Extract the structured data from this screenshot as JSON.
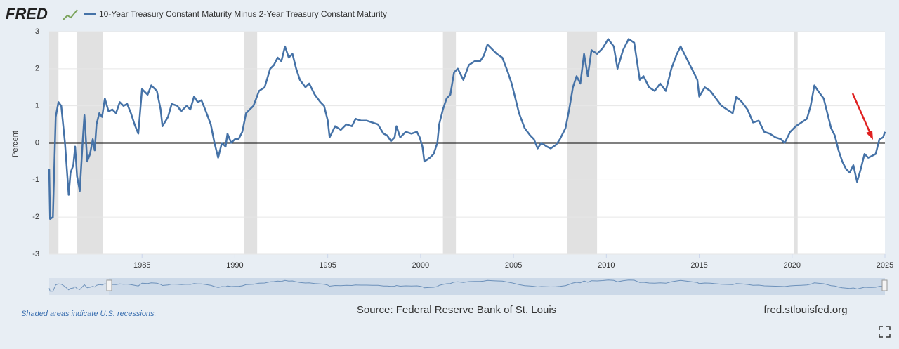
{
  "chart_data": {
    "type": "line",
    "logo": "FRED",
    "ylabel": "Percent",
    "note": "Shaded areas indicate U.S. recessions.",
    "source": "Source: Federal Reserve Bank of St. Louis",
    "site": "fred.stlouisfed.org",
    "xlim": [
      1980,
      2025
    ],
    "ylim": [
      -3,
      3
    ],
    "xticks": [
      1985,
      1990,
      1995,
      2000,
      2005,
      2010,
      2015,
      2020,
      2025
    ],
    "yticks": [
      3,
      2,
      1,
      0,
      -1,
      -2,
      -3
    ],
    "grid": true,
    "recessions": [
      [
        1980.0,
        1980.5
      ],
      [
        1981.5,
        1982.9
      ],
      [
        1990.5,
        1991.2
      ],
      [
        2001.2,
        2001.9
      ],
      [
        2007.9,
        2009.5
      ],
      [
        2020.1,
        2020.3
      ]
    ],
    "x": [
      1980.0,
      1980.05,
      1980.2,
      1980.35,
      1980.5,
      1980.65,
      1980.85,
      1981.05,
      1981.15,
      1981.3,
      1981.4,
      1981.5,
      1981.65,
      1981.8,
      1981.9,
      1982.05,
      1982.2,
      1982.35,
      1982.45,
      1982.55,
      1982.7,
      1982.85,
      1983.0,
      1983.2,
      1983.4,
      1983.6,
      1983.8,
      1984.0,
      1984.2,
      1984.4,
      1984.6,
      1984.8,
      1985.0,
      1985.3,
      1985.5,
      1985.8,
      1986.0,
      1986.1,
      1986.4,
      1986.6,
      1986.9,
      1987.1,
      1987.4,
      1987.6,
      1987.8,
      1988.0,
      1988.2,
      1988.4,
      1988.7,
      1988.9,
      1989.1,
      1989.3,
      1989.5,
      1989.6,
      1989.8,
      1990.0,
      1990.2,
      1990.4,
      1990.6,
      1990.8,
      1991.0,
      1991.3,
      1991.6,
      1991.9,
      1992.1,
      1992.3,
      1992.5,
      1992.7,
      1992.9,
      1993.1,
      1993.3,
      1993.5,
      1993.8,
      1994.0,
      1994.3,
      1994.6,
      1994.8,
      1995.0,
      1995.1,
      1995.4,
      1995.7,
      1996.0,
      1996.3,
      1996.5,
      1996.8,
      1997.1,
      1997.4,
      1997.7,
      1998.0,
      1998.2,
      1998.4,
      1998.6,
      1998.7,
      1998.9,
      1999.2,
      1999.5,
      1999.8,
      1999.95,
      2000.1,
      2000.2,
      2000.5,
      2000.7,
      2000.9,
      2001.0,
      2001.2,
      2001.4,
      2001.6,
      2001.8,
      2002.0,
      2002.3,
      2002.6,
      2002.9,
      2003.2,
      2003.4,
      2003.6,
      2003.9,
      2004.1,
      2004.4,
      2004.7,
      2004.9,
      2005.1,
      2005.3,
      2005.6,
      2005.9,
      2006.1,
      2006.3,
      2006.5,
      2006.8,
      2007.0,
      2007.3,
      2007.5,
      2007.8,
      2008.0,
      2008.2,
      2008.4,
      2008.6,
      2008.8,
      2009.0,
      2009.2,
      2009.5,
      2009.8,
      2010.1,
      2010.4,
      2010.6,
      2010.9,
      2011.2,
      2011.5,
      2011.8,
      2012.0,
      2012.3,
      2012.6,
      2012.9,
      2013.2,
      2013.5,
      2013.8,
      2014.0,
      2014.3,
      2014.6,
      2014.9,
      2015.0,
      2015.3,
      2015.6,
      2015.9,
      2016.2,
      2016.5,
      2016.8,
      2017.0,
      2017.3,
      2017.6,
      2017.9,
      2018.2,
      2018.5,
      2018.8,
      2019.1,
      2019.4,
      2019.6,
      2019.9,
      2020.2,
      2020.5,
      2020.8,
      2021.0,
      2021.2,
      2021.4,
      2021.7,
      2021.9,
      2022.1,
      2022.3,
      2022.5,
      2022.7,
      2022.9,
      2023.1,
      2023.3,
      2023.5,
      2023.7,
      2023.9,
      2024.1,
      2024.3,
      2024.5,
      2024.7,
      2024.9,
      2025.0
    ],
    "series": [
      {
        "name": "10-Year Treasury Constant Maturity Minus 2-Year Treasury Constant Maturity",
        "color": "#4572a7",
        "values": [
          -0.7,
          -2.05,
          -2.0,
          0.7,
          1.1,
          1.0,
          0.0,
          -1.4,
          -0.8,
          -0.6,
          -0.1,
          -0.9,
          -1.3,
          0.0,
          0.75,
          -0.5,
          -0.3,
          0.1,
          -0.2,
          0.5,
          0.8,
          0.7,
          1.2,
          0.85,
          0.9,
          0.8,
          1.1,
          1.0,
          1.05,
          0.8,
          0.5,
          0.25,
          1.45,
          1.3,
          1.55,
          1.4,
          0.9,
          0.45,
          0.7,
          1.05,
          1.0,
          0.85,
          1.0,
          0.9,
          1.25,
          1.1,
          1.15,
          0.9,
          0.5,
          0.0,
          -0.4,
          0.0,
          -0.1,
          0.25,
          0.0,
          0.1,
          0.1,
          0.3,
          0.8,
          0.9,
          1.0,
          1.4,
          1.5,
          2.0,
          2.1,
          2.3,
          2.2,
          2.6,
          2.3,
          2.4,
          2.0,
          1.7,
          1.5,
          1.6,
          1.3,
          1.1,
          1.0,
          0.6,
          0.15,
          0.45,
          0.35,
          0.5,
          0.45,
          0.65,
          0.6,
          0.6,
          0.55,
          0.5,
          0.25,
          0.2,
          0.05,
          0.15,
          0.45,
          0.15,
          0.3,
          0.25,
          0.3,
          0.15,
          -0.1,
          -0.5,
          -0.4,
          -0.3,
          0.0,
          0.5,
          0.9,
          1.2,
          1.3,
          1.9,
          2.0,
          1.7,
          2.1,
          2.2,
          2.2,
          2.35,
          2.65,
          2.5,
          2.4,
          2.3,
          1.9,
          1.6,
          1.2,
          0.8,
          0.4,
          0.2,
          0.1,
          -0.15,
          0.0,
          -0.1,
          -0.15,
          -0.05,
          0.1,
          0.4,
          0.9,
          1.5,
          1.8,
          1.6,
          2.4,
          1.8,
          2.5,
          2.4,
          2.55,
          2.8,
          2.6,
          2.0,
          2.5,
          2.8,
          2.7,
          1.7,
          1.8,
          1.5,
          1.4,
          1.6,
          1.4,
          2.0,
          2.4,
          2.6,
          2.3,
          2.0,
          1.7,
          1.25,
          1.5,
          1.4,
          1.2,
          1.0,
          0.9,
          0.8,
          1.25,
          1.1,
          0.9,
          0.55,
          0.6,
          0.3,
          0.25,
          0.15,
          0.1,
          0.0,
          0.3,
          0.45,
          0.55,
          0.65,
          1.0,
          1.55,
          1.4,
          1.2,
          0.8,
          0.4,
          0.2,
          -0.2,
          -0.5,
          -0.7,
          -0.8,
          -0.6,
          -1.05,
          -0.7,
          -0.3,
          -0.4,
          -0.35,
          -0.3,
          0.1,
          0.15,
          0.3
        ]
      }
    ]
  }
}
